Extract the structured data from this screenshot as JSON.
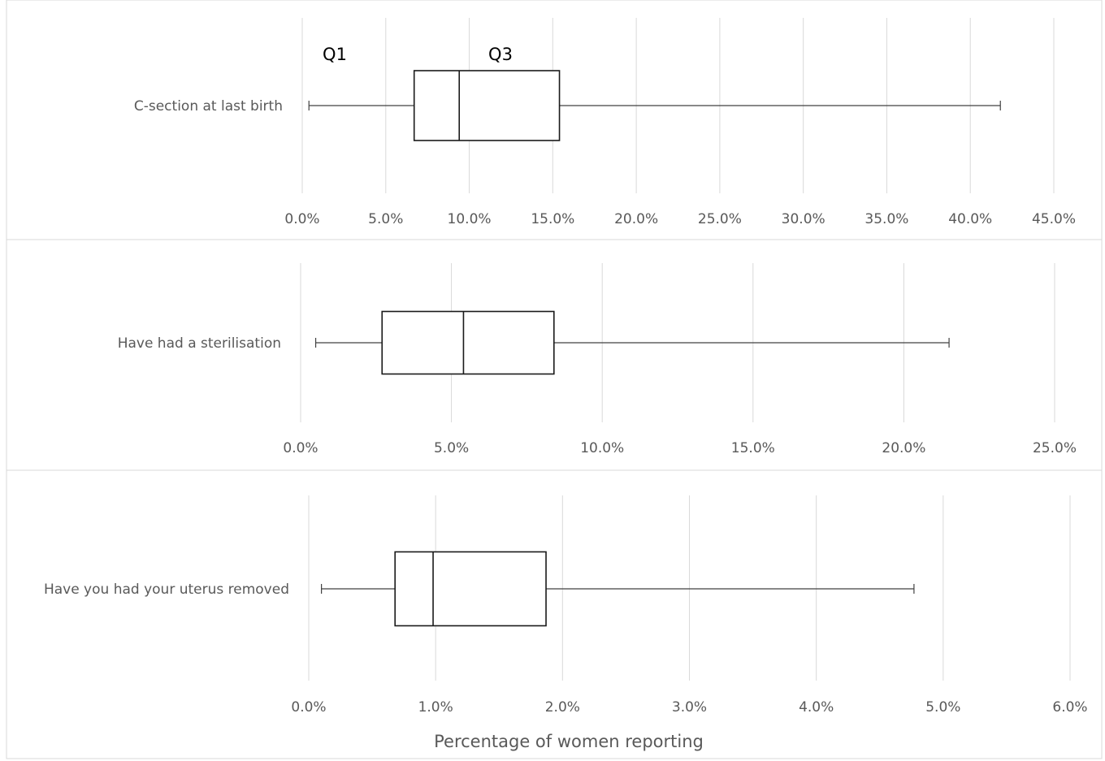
{
  "chart_data": [
    {
      "type": "boxplot",
      "category": "C-section at last birth",
      "stats": {
        "min": 0.4,
        "q1": 6.7,
        "median": 9.4,
        "q3": 15.4,
        "max": 41.8
      },
      "xlim": [
        0,
        45
      ],
      "ticks": [
        "0.0%",
        "5.0%",
        "10.0%",
        "15.0%",
        "20.0%",
        "25.0%",
        "30.0%",
        "35.0%",
        "40.0%",
        "45.0%"
      ],
      "annotations": [
        "Q1",
        "Q3"
      ],
      "grid": true
    },
    {
      "type": "boxplot",
      "category": "Have had a sterilisation",
      "stats": {
        "min": 0.5,
        "q1": 2.7,
        "median": 5.4,
        "q3": 8.4,
        "max": 21.5
      },
      "xlim": [
        0,
        25
      ],
      "ticks": [
        "0.0%",
        "5.0%",
        "10.0%",
        "15.0%",
        "20.0%",
        "25.0%"
      ],
      "grid": true
    },
    {
      "type": "boxplot",
      "category": "Have you had your uterus removed",
      "stats": {
        "min": 0.1,
        "q1": 0.68,
        "median": 0.98,
        "q3": 1.87,
        "max": 4.77
      },
      "xlim": [
        0,
        6
      ],
      "ticks": [
        "0.0%",
        "1.0%",
        "2.0%",
        "3.0%",
        "4.0%",
        "5.0%",
        "6.0%"
      ],
      "xlabel": "Percentage of women reporting",
      "grid": true
    }
  ],
  "colors": {
    "grid": "#d9d9d9",
    "box_stroke": "#1a1a1a",
    "whisker": "#404040",
    "text": "#595959"
  }
}
